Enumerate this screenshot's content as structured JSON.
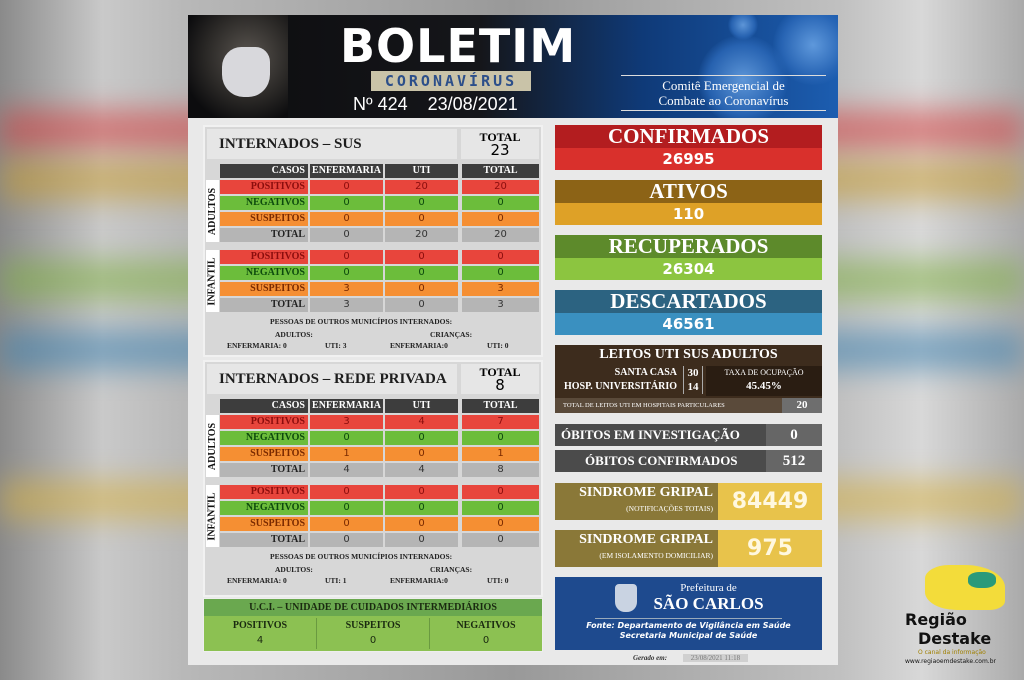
{
  "header": {
    "title": "BOLETIM",
    "subtitle": "CORONAVÍRUS",
    "number": "Nº 424",
    "date": "23/08/2021",
    "committee_line1": "Comitê Emergencial de",
    "committee_line2": "Combate ao Coronavírus"
  },
  "colors": {
    "positivos": "#e8453c",
    "negativos": "#6cbd3b",
    "suspeitos": "#f58f33",
    "total": "#b5b5b5",
    "header": "#3d3d3d"
  },
  "columns": [
    "CASOS",
    "ENFERMARIA",
    "UTI",
    "TOTAL"
  ],
  "row_labels": [
    "POSITIVOS",
    "NEGATIVOS",
    "SUSPEITOS",
    "TOTAL"
  ],
  "group_labels": {
    "adults": "ADULTOS",
    "children": "INFANTIL"
  },
  "sus": {
    "title": "INTERNADOS – SUS",
    "total_label": "TOTAL",
    "total": "23",
    "adultos": [
      [
        "0",
        "20",
        "20"
      ],
      [
        "0",
        "0",
        "0"
      ],
      [
        "0",
        "0",
        "0"
      ],
      [
        "0",
        "20",
        "20"
      ]
    ],
    "infantil": [
      [
        "0",
        "0",
        "0"
      ],
      [
        "0",
        "0",
        "0"
      ],
      [
        "3",
        "0",
        "3"
      ],
      [
        "3",
        "0",
        "3"
      ]
    ],
    "outros": {
      "heading": "PESSOAS  DE OUTROS MUNICÍPIOS INTERNADOS:",
      "adultos_label": "ADULTOS:",
      "criancas_label": "CRIANÇAS:",
      "adultos_enf": "ENFERMARIA:   0",
      "adultos_uti": "UTI: 3",
      "criancas_enf": "ENFERMARIA:0",
      "criancas_uti": "UTI: 0"
    }
  },
  "privada": {
    "title": "INTERNADOS – REDE PRIVADA",
    "total_label": "TOTAL",
    "total": "8",
    "adultos": [
      [
        "3",
        "4",
        "7"
      ],
      [
        "0",
        "0",
        "0"
      ],
      [
        "1",
        "0",
        "1"
      ],
      [
        "4",
        "4",
        "8"
      ]
    ],
    "infantil": [
      [
        "0",
        "0",
        "0"
      ],
      [
        "0",
        "0",
        "0"
      ],
      [
        "0",
        "0",
        "0"
      ],
      [
        "0",
        "0",
        "0"
      ]
    ],
    "outros": {
      "heading": "PESSOAS  DE OUTROS MUNICÍPIOS INTERNADOS:",
      "adultos_label": "ADULTOS:",
      "criancas_label": "CRIANÇAS:",
      "adultos_enf": "ENFERMARIA:   0",
      "adultos_uti": "UTI: 1",
      "criancas_enf": "ENFERMARIA:0",
      "criancas_uti": "UTI: 0"
    }
  },
  "uci": {
    "title": "U.C.I. – UNIDADE DE CUIDADOS INTERMEDIÁRIOS",
    "items": [
      {
        "label": "POSITIVOS",
        "value": "4"
      },
      {
        "label": "SUSPEITOS",
        "value": "0"
      },
      {
        "label": "NEGATIVOS",
        "value": "0"
      }
    ]
  },
  "stats": [
    {
      "label": "CONFIRMADOS",
      "value": "26995",
      "top": "#b31d1f",
      "bottom": "#d9302c"
    },
    {
      "label": "ATIVOS",
      "value": "110",
      "top": "#8c6316",
      "bottom": "#dea127"
    },
    {
      "label": "RECUPERADOS",
      "value": "26304",
      "top": "#5d8a2b",
      "bottom": "#8cc540"
    },
    {
      "label": "DESCARTADOS",
      "value": "46561",
      "top": "#2c6381",
      "bottom": "#3a90c0"
    }
  ],
  "leitos": {
    "title": "LEITOS UTI SUS ADULTOS",
    "santa_casa_label": "SANTA CASA",
    "santa_casa": "30",
    "hu_label": "HOSP. UNIVERSITÁRIO",
    "hu": "14",
    "taxa_label": "TAXA DE OCUPAÇÃO",
    "taxa": "45.45%",
    "particulares_label": "TOTAL DE LEITOS UTI EM HOSPITAIS PARTICULARES",
    "particulares": "20"
  },
  "obitos": {
    "investigacao_label": "ÓBITOS EM INVESTIGAÇÃO",
    "investigacao": "0",
    "confirmados_label": "ÓBITOS CONFIRMADOS",
    "confirmados": "512"
  },
  "sindrome": [
    {
      "label": "SINDROME GRIPAL",
      "sub": "(NOTIFICAÇÕES TOTAIS)",
      "value": "84449"
    },
    {
      "label": "SINDROME GRIPAL",
      "sub": "(EM ISOLAMENTO DOMICILIAR)",
      "value": "975"
    }
  ],
  "prefeitura": {
    "line1": "Prefeitura de",
    "line2": "SÃO CARLOS",
    "fonte1": "Fonte: Departamento de Vigilância em Saúde",
    "fonte2": "Secretaria Municipal de Saúde"
  },
  "generated": {
    "label": "Gerado em:",
    "value": "23/08/2021 11:18"
  },
  "watermark": {
    "line1": "Região",
    "line2": "Destake",
    "tagline": "O canal da informação",
    "url": "www.regiaoemdestake.com.br"
  }
}
